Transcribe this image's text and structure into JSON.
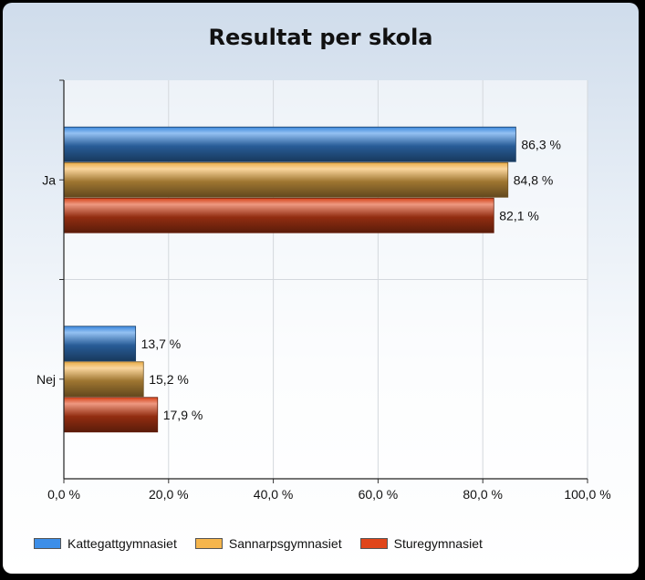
{
  "chart_data": {
    "type": "bar",
    "orientation": "horizontal",
    "title": "Resultat per skola",
    "categories": [
      "Ja",
      "Nej"
    ],
    "series": [
      {
        "name": "Kattegattgymnasiet",
        "values": [
          86.3,
          13.7
        ],
        "labels": [
          "86,3 %",
          "13,7 %"
        ],
        "color": "#3d8ee8"
      },
      {
        "name": "Sannarpsgymnasiet",
        "values": [
          84.8,
          15.2
        ],
        "labels": [
          "84,8 %",
          "15,2 %"
        ],
        "color": "#f5b54c"
      },
      {
        "name": "Sturegymnasiet",
        "values": [
          82.1,
          17.9
        ],
        "labels": [
          "82,1 %",
          "17,9 %"
        ],
        "color": "#e0451a"
      }
    ],
    "xlim": [
      0,
      100
    ],
    "x_ticks": [
      0,
      20,
      40,
      60,
      80,
      100
    ],
    "x_tick_labels": [
      "0,0 %",
      "20,0 %",
      "40,0 %",
      "60,0 %",
      "80,0 %",
      "100,0 %"
    ],
    "xlabel": "",
    "ylabel": "",
    "grid": true,
    "legend_position": "bottom-left"
  }
}
